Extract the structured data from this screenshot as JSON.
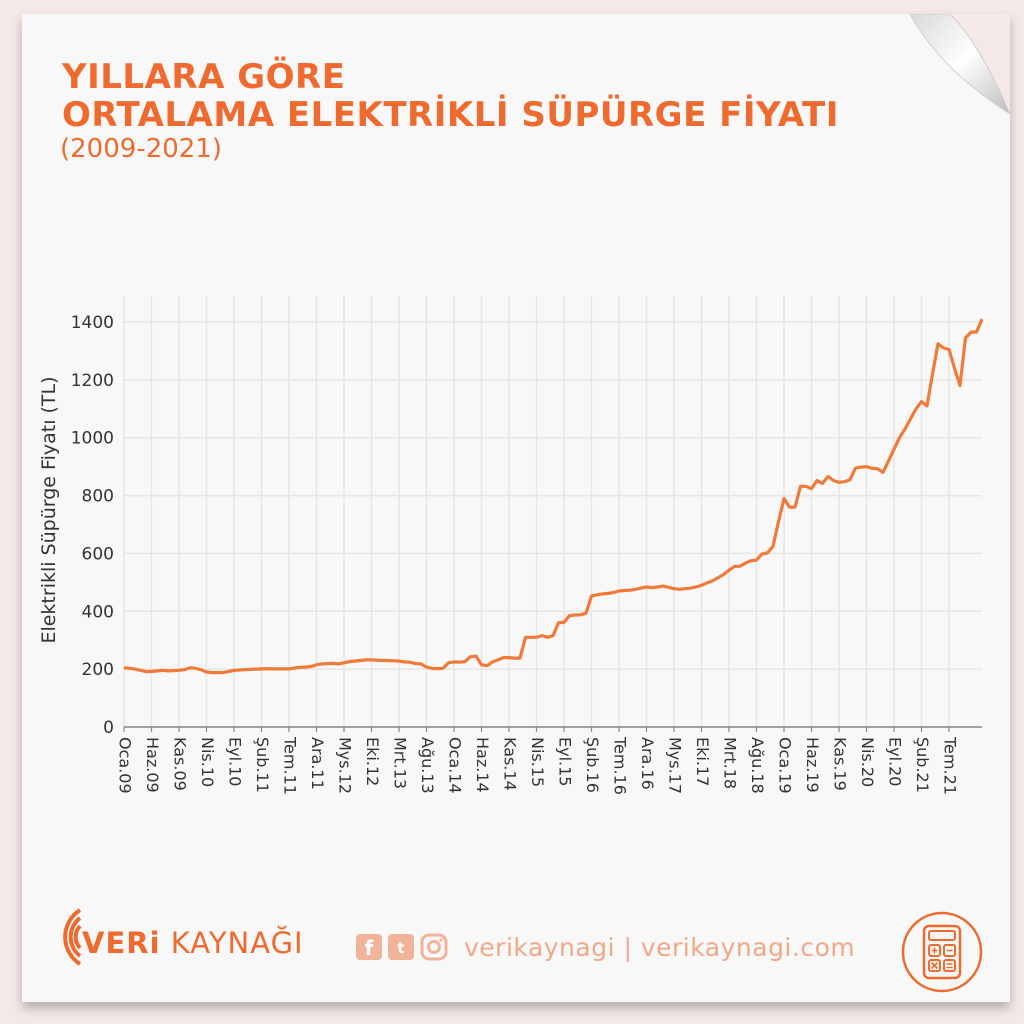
{
  "header": {
    "title_line1": "YILLARA GÖRE",
    "title_line2": "ORTALAMA ELEKTRİKLİ SÜPÜRGE FİYATI",
    "subtitle": "(2009-2021)"
  },
  "footer": {
    "brand_bold": "VERi",
    "brand_rest": " KAYNAĞI",
    "handle": "verikaynagi | verikaynagi.com",
    "icons": [
      "facebook-icon",
      "twitter-icon",
      "instagram-icon",
      "calculator-icon"
    ]
  },
  "colors": {
    "accent": "#ef6a2e",
    "line": "#f07a3a",
    "grid": "#e6e6e6",
    "background": "#f4e9e6"
  },
  "chart_data": {
    "type": "line",
    "title": "YILLARA GÖRE ORTALAMA ELEKTRİKLİ SÜPÜRGE FİYATI",
    "subtitle": "(2009-2021)",
    "xlabel": "",
    "ylabel": "Elektrikli Süpürge Fiyatı (TL)",
    "ylim": [
      0,
      1400
    ],
    "yticks": [
      0,
      200,
      400,
      600,
      800,
      1000,
      1200,
      1400
    ],
    "grid": true,
    "xticks": [
      "Oca.09",
      "Haz.09",
      "Kas.09",
      "Nis.10",
      "Eyl.10",
      "Şub.11",
      "Tem.11",
      "Ara.11",
      "Mys.12",
      "Eki.12",
      "Mrt.13",
      "Ağu.13",
      "Oca.14",
      "Haz.14",
      "Kas.14",
      "Nis.15",
      "Eyl.15",
      "Şub.16",
      "Tem.16",
      "Ara.16",
      "Mys.17",
      "Eki.17",
      "Mrt.18",
      "Ağu.18",
      "Oca.19",
      "Haz.19",
      "Kas.19",
      "Nis.20",
      "Eyl.20",
      "Şub.21",
      "Tem.21"
    ],
    "tick_month_indices": [
      0,
      5,
      10,
      15,
      20,
      25,
      30,
      35,
      40,
      45,
      50,
      55,
      60,
      65,
      70,
      75,
      80,
      85,
      90,
      95,
      100,
      105,
      110,
      115,
      120,
      125,
      130,
      135,
      140,
      145,
      150
    ],
    "series": [
      {
        "values": [
          205,
          203,
          200,
          196,
          192,
          192,
          194,
          196,
          194,
          195,
          196,
          198,
          205,
          203,
          198,
          190,
          188,
          188,
          188,
          192,
          196,
          197,
          198,
          199,
          200,
          201,
          202,
          201,
          201,
          201,
          201,
          204,
          206,
          207,
          209,
          215,
          218,
          219,
          220,
          218,
          222,
          226,
          228,
          230,
          232,
          232,
          231,
          230,
          230,
          229,
          228,
          225,
          224,
          219,
          218,
          207,
          203,
          202,
          203,
          222,
          225,
          224,
          226,
          243,
          245,
          215,
          212,
          225,
          232,
          240,
          240,
          238,
          238,
          310,
          310,
          310,
          316,
          310,
          316,
          360,
          362,
          385,
          387,
          388,
          393,
          453,
          457,
          460,
          462,
          465,
          470,
          472,
          473,
          476,
          480,
          484,
          482,
          484,
          487,
          483,
          478,
          476,
          478,
          480,
          484,
          490,
          498,
          505,
          516,
          527,
          542,
          555,
          556,
          567,
          575,
          577,
          598,
          602,
          625,
          710,
          790,
          760,
          760,
          832,
          832,
          824,
          852,
          842,
          866,
          852,
          846,
          848,
          855,
          895,
          898,
          900,
          894,
          893,
          880,
          920,
          960,
          1000,
          1030,
          1065,
          1100,
          1125,
          1110,
          1220,
          1325,
          1310,
          1305,
          1240,
          1180,
          1345,
          1365,
          1365,
          1410
        ]
      }
    ]
  }
}
